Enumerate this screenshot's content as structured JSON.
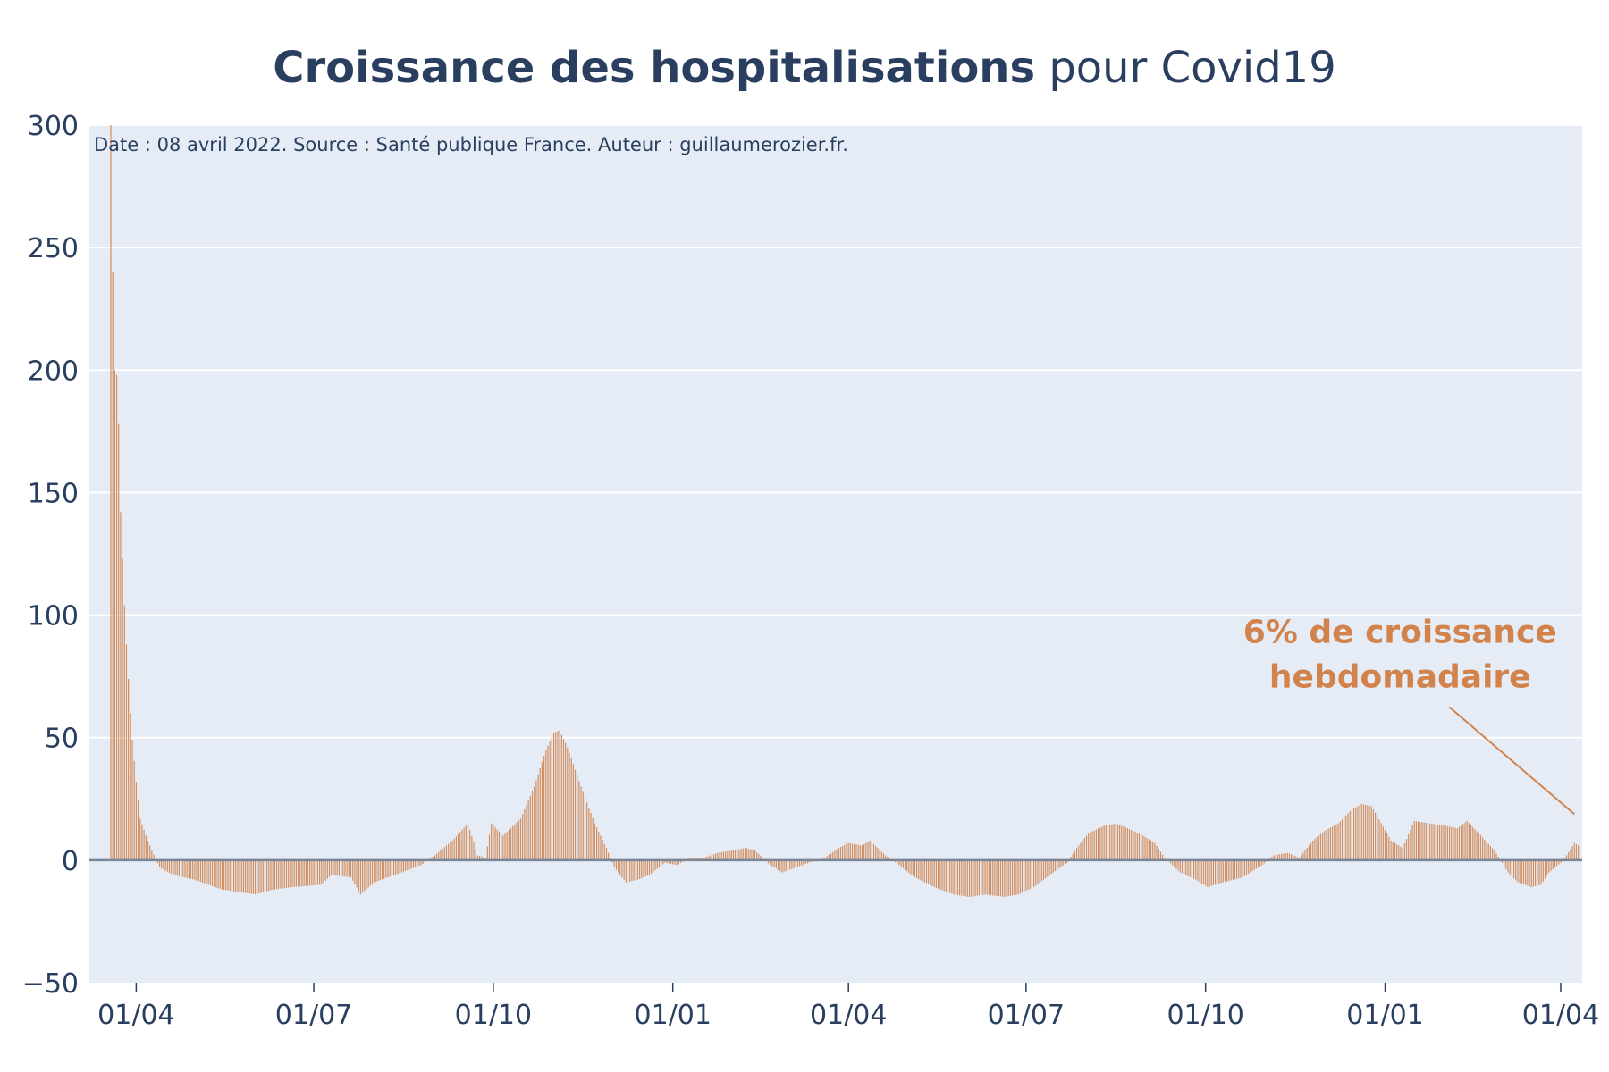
{
  "chart_data": {
    "type": "bar",
    "title": "Croissance des hospitalisations",
    "title_suffix": "pour Covid19",
    "subtitle": "Date : 08 avril 2022. Source : Santé publique France. Auteur : guillaumerozier.fr.",
    "xlabel": "",
    "ylabel": "",
    "ylim": [
      -50,
      300
    ],
    "yticks": [
      -50,
      0,
      50,
      100,
      150,
      200,
      250,
      300
    ],
    "ytick_labels": [
      "−50",
      "0",
      "50",
      "100",
      "150",
      "200",
      "250",
      "300"
    ],
    "xlim": [
      "2020-03-08",
      "2022-04-12"
    ],
    "xticks": [
      "2020-04-01",
      "2020-07-01",
      "2020-10-01",
      "2021-01-01",
      "2021-04-01",
      "2021-07-01",
      "2021-10-01",
      "2022-01-01",
      "2022-04-01"
    ],
    "xtick_labels": [
      "01/04",
      "01/07",
      "01/10",
      "01/01",
      "01/04",
      "01/07",
      "01/10",
      "01/01",
      "01/04"
    ],
    "grid": true,
    "bar_color": "#d2834b",
    "keypoints": [
      [
        "2020-03-19",
        300
      ],
      [
        "2020-03-20",
        240
      ],
      [
        "2020-03-21",
        200
      ],
      [
        "2020-03-22",
        198
      ],
      [
        "2020-03-23",
        178
      ],
      [
        "2020-03-24",
        142
      ],
      [
        "2020-03-25",
        123
      ],
      [
        "2020-03-26",
        104
      ],
      [
        "2020-03-27",
        88
      ],
      [
        "2020-03-28",
        74
      ],
      [
        "2020-03-29",
        60
      ],
      [
        "2020-03-30",
        49
      ],
      [
        "2020-04-01",
        32
      ],
      [
        "2020-04-03",
        17
      ],
      [
        "2020-04-06",
        10
      ],
      [
        "2020-04-09",
        4
      ],
      [
        "2020-04-13",
        -3
      ],
      [
        "2020-04-20",
        -6
      ],
      [
        "2020-05-01",
        -8
      ],
      [
        "2020-05-15",
        -12
      ],
      [
        "2020-06-01",
        -14
      ],
      [
        "2020-06-10",
        -12
      ],
      [
        "2020-06-20",
        -11
      ],
      [
        "2020-07-05",
        -10
      ],
      [
        "2020-07-10",
        -6
      ],
      [
        "2020-07-20",
        -7
      ],
      [
        "2020-07-25",
        -14
      ],
      [
        "2020-08-01",
        -9
      ],
      [
        "2020-08-15",
        -5
      ],
      [
        "2020-08-25",
        -2
      ],
      [
        "2020-09-01",
        2
      ],
      [
        "2020-09-10",
        8
      ],
      [
        "2020-09-18",
        15
      ],
      [
        "2020-09-23",
        2
      ],
      [
        "2020-09-27",
        1
      ],
      [
        "2020-09-30",
        15
      ],
      [
        "2020-10-06",
        10
      ],
      [
        "2020-10-15",
        17
      ],
      [
        "2020-10-22",
        30
      ],
      [
        "2020-10-28",
        45
      ],
      [
        "2020-11-01",
        52
      ],
      [
        "2020-11-04",
        53
      ],
      [
        "2020-11-08",
        46
      ],
      [
        "2020-11-15",
        30
      ],
      [
        "2020-11-22",
        15
      ],
      [
        "2020-11-28",
        5
      ],
      [
        "2020-12-02",
        -3
      ],
      [
        "2020-12-08",
        -9
      ],
      [
        "2020-12-14",
        -8
      ],
      [
        "2020-12-20",
        -6
      ],
      [
        "2020-12-28",
        -1
      ],
      [
        "2021-01-03",
        -2
      ],
      [
        "2021-01-10",
        1
      ],
      [
        "2021-01-17",
        1
      ],
      [
        "2021-01-24",
        3
      ],
      [
        "2021-02-01",
        4
      ],
      [
        "2021-02-07",
        5
      ],
      [
        "2021-02-12",
        4
      ],
      [
        "2021-02-20",
        -2
      ],
      [
        "2021-02-26",
        -5
      ],
      [
        "2021-03-05",
        -3
      ],
      [
        "2021-03-12",
        -1
      ],
      [
        "2021-03-20",
        1
      ],
      [
        "2021-03-27",
        5
      ],
      [
        "2021-04-01",
        7
      ],
      [
        "2021-04-08",
        6
      ],
      [
        "2021-04-12",
        8
      ],
      [
        "2021-04-20",
        2
      ],
      [
        "2021-04-27",
        -2
      ],
      [
        "2021-05-05",
        -7
      ],
      [
        "2021-05-15",
        -11
      ],
      [
        "2021-05-25",
        -14
      ],
      [
        "2021-06-02",
        -15
      ],
      [
        "2021-06-10",
        -14
      ],
      [
        "2021-06-20",
        -15
      ],
      [
        "2021-06-27",
        -14
      ],
      [
        "2021-07-05",
        -11
      ],
      [
        "2021-07-15",
        -5
      ],
      [
        "2021-07-22",
        -1
      ],
      [
        "2021-07-27",
        5
      ],
      [
        "2021-08-02",
        11
      ],
      [
        "2021-08-10",
        14
      ],
      [
        "2021-08-16",
        15
      ],
      [
        "2021-08-22",
        13
      ],
      [
        "2021-08-30",
        10
      ],
      [
        "2021-09-05",
        7
      ],
      [
        "2021-09-10",
        1
      ],
      [
        "2021-09-18",
        -5
      ],
      [
        "2021-09-26",
        -8
      ],
      [
        "2021-10-02",
        -11
      ],
      [
        "2021-10-10",
        -9
      ],
      [
        "2021-10-20",
        -7
      ],
      [
        "2021-10-30",
        -2
      ],
      [
        "2021-11-05",
        2
      ],
      [
        "2021-11-12",
        3
      ],
      [
        "2021-11-18",
        1
      ],
      [
        "2021-11-25",
        8
      ],
      [
        "2021-12-01",
        12
      ],
      [
        "2021-12-08",
        15
      ],
      [
        "2021-12-14",
        20
      ],
      [
        "2021-12-20",
        23
      ],
      [
        "2021-12-25",
        22
      ],
      [
        "2021-12-28",
        18
      ],
      [
        "2022-01-04",
        8
      ],
      [
        "2022-01-10",
        5
      ],
      [
        "2022-01-16",
        16
      ],
      [
        "2022-01-24",
        15
      ],
      [
        "2022-02-01",
        14
      ],
      [
        "2022-02-07",
        13
      ],
      [
        "2022-02-12",
        16
      ],
      [
        "2022-02-18",
        11
      ],
      [
        "2022-02-26",
        4
      ],
      [
        "2022-03-05",
        -5
      ],
      [
        "2022-03-10",
        -9
      ],
      [
        "2022-03-17",
        -11
      ],
      [
        "2022-03-22",
        -10
      ],
      [
        "2022-03-26",
        -5
      ],
      [
        "2022-04-01",
        -1
      ],
      [
        "2022-04-04",
        2
      ],
      [
        "2022-04-08",
        7
      ],
      [
        "2022-04-10",
        6
      ]
    ],
    "annotation": {
      "lines": [
        "6% de croissance",
        "hebdomadaire"
      ],
      "date": "2022-04-08",
      "value": 6
    }
  }
}
